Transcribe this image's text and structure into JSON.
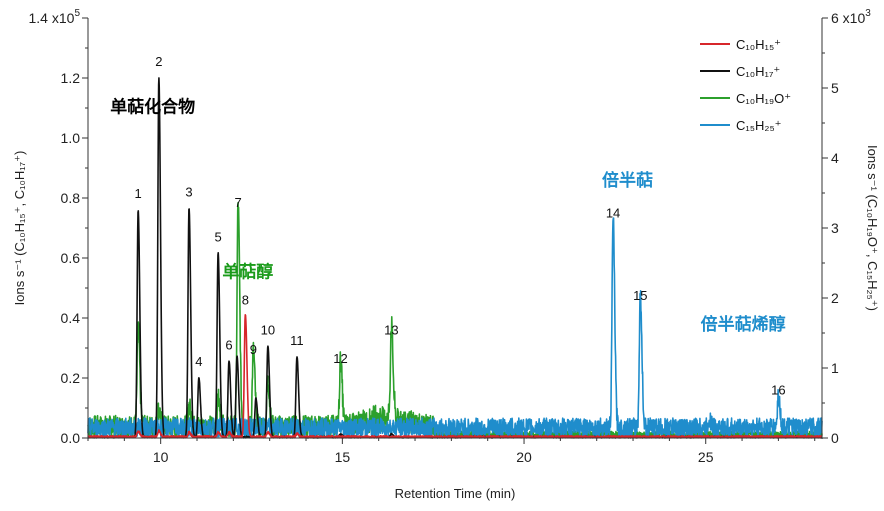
{
  "chart_data": {
    "type": "line",
    "xlabel": "Retention Time (min)",
    "ylabel_left": "Ions s⁻¹ (C₁₀H₁₅⁺, C₁₀H₁₇⁺)",
    "ylabel_right": "Ions s⁻¹ (C₁₀H₁₉O⁺, C₁₅H₂₅⁺)",
    "xlim": [
      8,
      28.2
    ],
    "ylim_left": [
      0,
      140000
    ],
    "ylim_right": [
      0,
      6000
    ],
    "x_ticks": [
      10,
      15,
      20,
      25
    ],
    "x_tick_labels": [
      "10",
      "15",
      "20",
      "25"
    ],
    "yleft_ticks": [
      0,
      20000,
      40000,
      60000,
      80000,
      100000,
      120000,
      140000
    ],
    "yleft_tick_labels": [
      "0.0",
      "0.2",
      "0.4",
      "0.6",
      "0.8",
      "1.0",
      "1.2",
      "1.4 x10⁵"
    ],
    "yright_ticks": [
      0,
      1000,
      2000,
      3000,
      4000,
      5000,
      6000
    ],
    "yright_tick_labels": [
      "0",
      "1",
      "2",
      "3",
      "4",
      "5",
      "6 x10³"
    ],
    "series": [
      {
        "name": "C₁₀H₁₅⁺",
        "color": "#d7262b",
        "axis": "left",
        "peaks": [
          {
            "x": 12.33,
            "y": 41000
          },
          {
            "x": 9.38,
            "y": 2000
          },
          {
            "x": 9.95,
            "y": 2000
          },
          {
            "x": 10.78,
            "y": 1500
          },
          {
            "x": 11.58,
            "y": 1500
          },
          {
            "x": 11.88,
            "y": 1500
          },
          {
            "x": 12.95,
            "y": 1500
          },
          {
            "x": 13.75,
            "y": 1000
          }
        ],
        "baseline": 400
      },
      {
        "name": "C₁₀H₁₇⁺",
        "color": "#111111",
        "axis": "left",
        "peaks": [
          {
            "x": 9.38,
            "y": 75500
          },
          {
            "x": 9.95,
            "y": 120000
          },
          {
            "x": 10.78,
            "y": 76500
          },
          {
            "x": 11.05,
            "y": 20000
          },
          {
            "x": 11.58,
            "y": 61500
          },
          {
            "x": 11.88,
            "y": 25500
          },
          {
            "x": 12.1,
            "y": 27000
          },
          {
            "x": 12.62,
            "y": 13000
          },
          {
            "x": 12.95,
            "y": 30500
          },
          {
            "x": 13.75,
            "y": 27000
          },
          {
            "x": 14.95,
            "y": 1000
          },
          {
            "x": 16.35,
            "y": 1000
          }
        ],
        "baseline": 300
      },
      {
        "name": "C₁₀H₁₉O⁺",
        "color": "#2ca02c",
        "axis": "right",
        "peaks": [
          {
            "x": 9.38,
            "y": 1430
          },
          {
            "x": 9.95,
            "y": 250
          },
          {
            "x": 10.78,
            "y": 300
          },
          {
            "x": 11.58,
            "y": 400
          },
          {
            "x": 12.13,
            "y": 3180
          },
          {
            "x": 12.55,
            "y": 1080
          },
          {
            "x": 12.95,
            "y": 650
          },
          {
            "x": 14.95,
            "y": 940
          },
          {
            "x": 16.35,
            "y": 1320
          }
        ],
        "baseline": 170,
        "baseline_end": 17.5,
        "baseline_after": 50
      },
      {
        "name": "C₁₅H₂₅⁺",
        "color": "#1f8dcc",
        "axis": "right",
        "peaks": [
          {
            "x": 22.45,
            "y": 3000
          },
          {
            "x": 23.2,
            "y": 1870
          },
          {
            "x": 25.1,
            "y": 130
          },
          {
            "x": 27.0,
            "y": 450
          }
        ],
        "baseline": 150
      }
    ],
    "peak_labels": [
      {
        "label": "1",
        "x": 9.38,
        "y": 80000
      },
      {
        "label": "2",
        "x": 9.95,
        "y": 124000
      },
      {
        "label": "3",
        "x": 10.78,
        "y": 80500
      },
      {
        "label": "4",
        "x": 11.05,
        "y": 24000
      },
      {
        "label": "5",
        "x": 11.58,
        "y": 65500
      },
      {
        "label": "6",
        "x": 11.88,
        "y": 29500
      },
      {
        "label": "7",
        "x": 12.13,
        "y": 77000
      },
      {
        "label": "8",
        "x": 12.33,
        "y": 44500
      },
      {
        "label": "9",
        "x": 12.55,
        "y": 28000
      },
      {
        "label": "10",
        "x": 12.95,
        "y": 34500
      },
      {
        "label": "11",
        "x": 13.75,
        "y": 31000
      },
      {
        "label": "12",
        "x": 14.95,
        "y": 25000
      },
      {
        "label": "13",
        "x": 16.35,
        "y": 34500
      },
      {
        "label": "14",
        "x": 22.45,
        "y": 73500
      },
      {
        "label": "15",
        "x": 23.2,
        "y": 46000
      },
      {
        "label": "16",
        "x": 27.0,
        "y": 14500
      }
    ],
    "annotations": [
      {
        "text": "单萜化合物",
        "x": 10.95,
        "y": 108500,
        "color": "#000000"
      },
      {
        "text": "单萜醇",
        "x": 13.1,
        "y": 53500,
        "color": "#1a9b1a"
      },
      {
        "text": "倍半萜",
        "x": 23.55,
        "y": 84000,
        "color": "#1f8dcc"
      },
      {
        "text": "倍半萜烯醇",
        "x": 27.2,
        "y": 36000,
        "color": "#1f8dcc"
      }
    ],
    "legend": {
      "position": "top-right"
    }
  }
}
